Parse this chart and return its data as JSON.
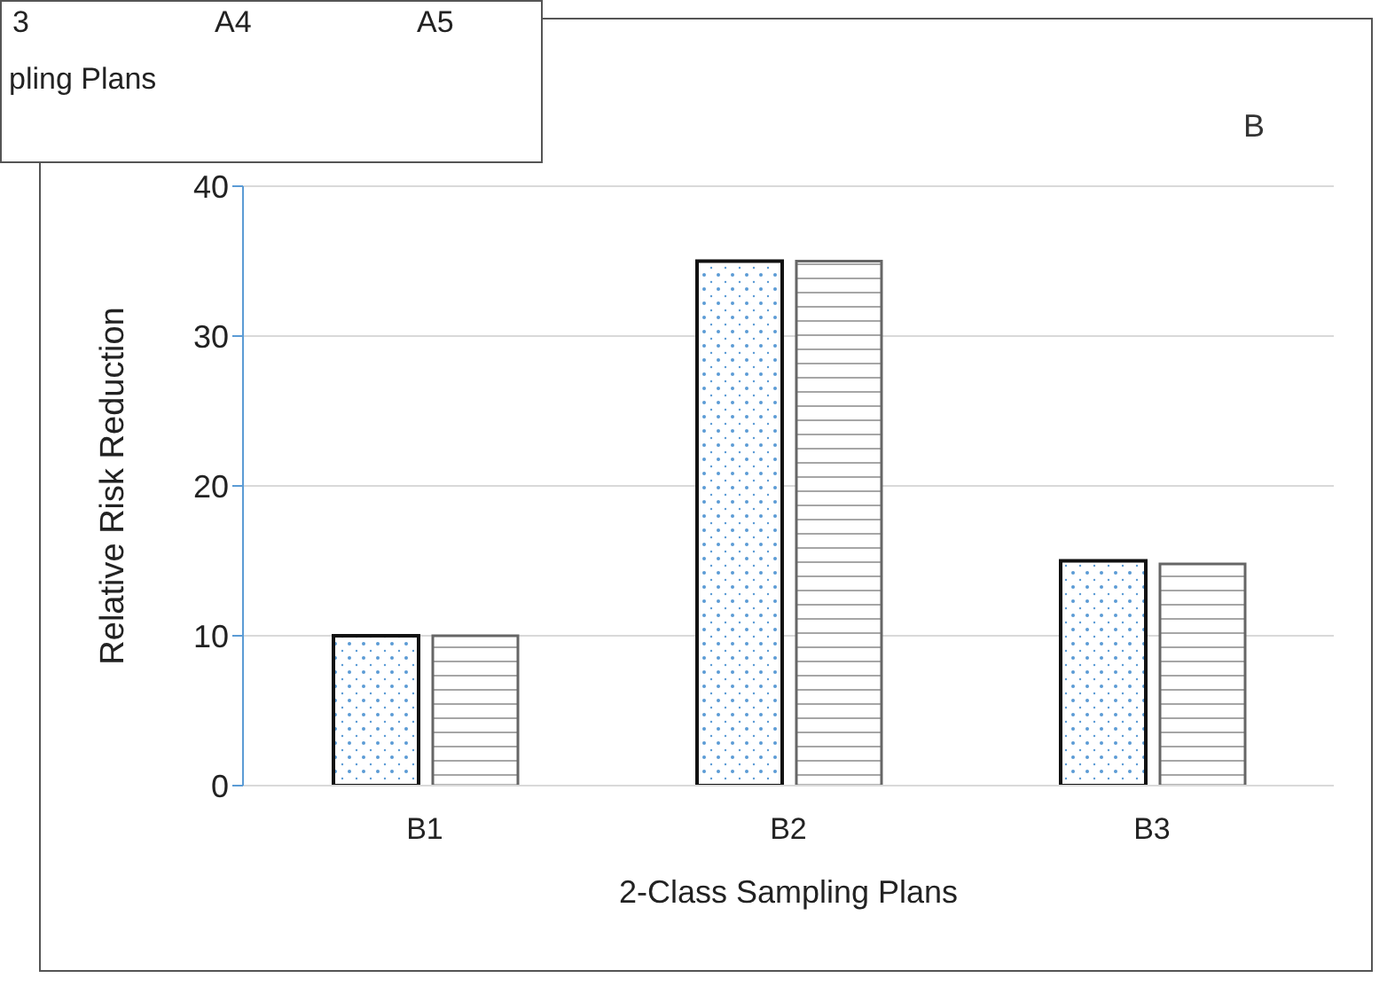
{
  "chart_data": [
    {
      "type": "other",
      "categories": [
        "3",
        "A4",
        "A5"
      ],
      "xlabel": "pling Plans"
    },
    {
      "type": "bar",
      "categories": [
        "B1",
        "B2",
        "B3"
      ],
      "xlabel": "2-Class Sampling Plans",
      "ylabel": "Relative Risk Reduction",
      "annotations": [
        "B"
      ],
      "series": [
        {
          "color": "#111111",
          "values": [
            10,
            35,
            15
          ]
        },
        {
          "color": "#666666",
          "values": [
            10,
            35,
            14.8
          ]
        }
      ],
      "ylim": [
        0,
        40
      ],
      "yticks": [
        0,
        10,
        20,
        30,
        40
      ],
      "grid": "y"
    }
  ]
}
